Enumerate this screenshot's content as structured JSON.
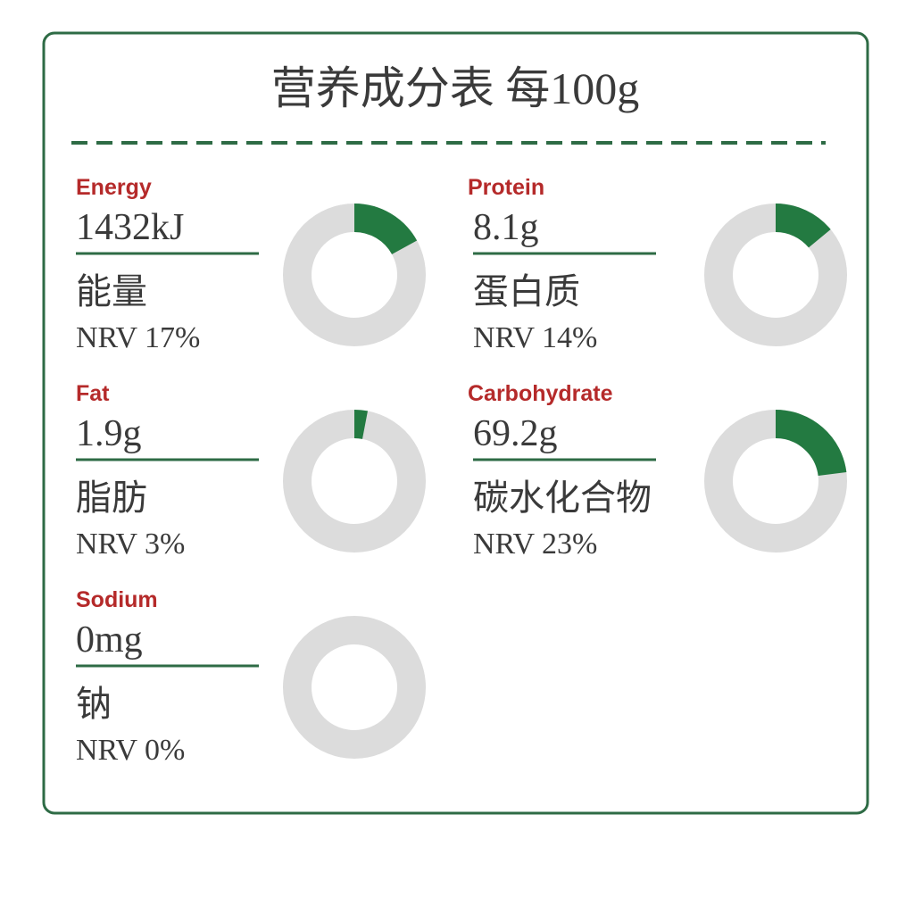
{
  "title": "营养成分表 每100g",
  "items": [
    {
      "name_en": "Energy",
      "amount": "1432kJ",
      "name_zh": "能量",
      "nrv": 17,
      "nrv_label": "NRV 17%"
    },
    {
      "name_en": "Protein",
      "amount": "8.1g",
      "name_zh": "蛋白质",
      "nrv": 14,
      "nrv_label": "NRV 14%"
    },
    {
      "name_en": "Fat",
      "amount": "1.9g",
      "name_zh": "脂肪",
      "nrv": 3,
      "nrv_label": "NRV 3%"
    },
    {
      "name_en": "Carbohydrate",
      "amount": "69.2g",
      "name_zh": "碳水化合物",
      "nrv": 23,
      "nrv_label": "NRV 23%"
    },
    {
      "name_en": "Sodium",
      "amount": "0mg",
      "name_zh": "钠",
      "nrv": 0,
      "nrv_label": "NRV 0%"
    }
  ]
}
